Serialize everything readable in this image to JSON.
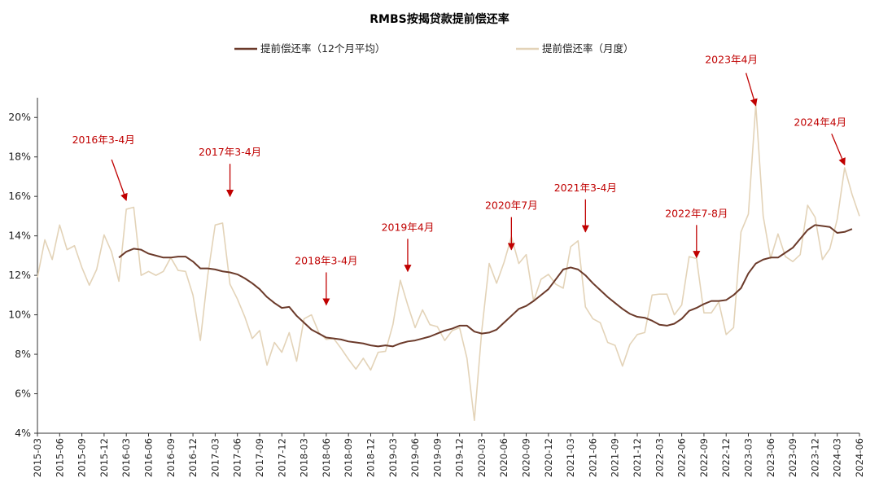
{
  "chart_data": {
    "type": "line",
    "title": "RMBS按揭贷款提前偿还率",
    "xlabel": "",
    "ylabel": "",
    "ylim": [
      4,
      21
    ],
    "yticks": [
      4,
      6,
      8,
      10,
      12,
      14,
      16,
      18,
      20
    ],
    "ytick_labels": [
      "4%",
      "6%",
      "8%",
      "10%",
      "12%",
      "14%",
      "16%",
      "18%",
      "20%"
    ],
    "grid": false,
    "legend_position": "top-center",
    "x_labels": [
      "2015-03",
      "2015-06",
      "2015-09",
      "2015-12",
      "2016-03",
      "2016-06",
      "2016-09",
      "2016-12",
      "2017-03",
      "2017-06",
      "2017-09",
      "2017-12",
      "2018-03",
      "2018-06",
      "2018-09",
      "2018-12",
      "2019-03",
      "2019-06",
      "2019-09",
      "2019-12",
      "2020-03",
      "2020-06",
      "2020-09",
      "2020-12",
      "2021-03",
      "2021-06",
      "2021-09",
      "2021-12",
      "2022-03",
      "2022-06",
      "2022-09",
      "2022-12",
      "2023-03",
      "2023-06",
      "2023-09",
      "2023-12",
      "2024-03",
      "2024-06"
    ],
    "x_start": "2015-03",
    "x_end": "2024-06",
    "series": [
      {
        "name": "提前偿还率（12个月平均）",
        "color": "#6b3a2a",
        "start": "2016-02",
        "values": [
          12.9,
          13.2,
          13.35,
          13.3,
          13.1,
          13.0,
          12.9,
          12.9,
          12.95,
          12.95,
          12.7,
          12.35,
          12.35,
          12.3,
          12.2,
          12.15,
          12.05,
          11.85,
          11.6,
          11.3,
          10.9,
          10.6,
          10.35,
          10.4,
          9.95,
          9.6,
          9.25,
          9.05,
          8.85,
          8.8,
          8.75,
          8.65,
          8.6,
          8.55,
          8.45,
          8.4,
          8.45,
          8.4,
          8.55,
          8.65,
          8.7,
          8.8,
          8.9,
          9.05,
          9.2,
          9.3,
          9.45,
          9.45,
          9.15,
          9.05,
          9.1,
          9.25,
          9.6,
          9.95,
          10.3,
          10.45,
          10.7,
          11.0,
          11.3,
          11.8,
          12.3,
          12.4,
          12.3,
          12.0,
          11.6,
          11.25,
          10.9,
          10.6,
          10.3,
          10.05,
          9.9,
          9.85,
          9.7,
          9.5,
          9.45,
          9.55,
          9.8,
          10.2,
          10.35,
          10.55,
          10.7,
          10.7,
          10.75,
          11.0,
          11.35,
          12.1,
          12.6,
          12.8,
          12.9,
          12.9,
          13.15,
          13.4,
          13.85,
          14.3,
          14.55,
          14.5,
          14.45,
          14.15,
          14.2,
          14.35
        ]
      },
      {
        "name": "提前偿还率（月度）",
        "color": "#e3d3b8",
        "start": "2015-03",
        "values": [
          11.9,
          13.8,
          12.8,
          14.55,
          13.3,
          13.5,
          12.4,
          11.5,
          12.3,
          14.05,
          13.2,
          11.7,
          15.35,
          15.45,
          12.0,
          12.2,
          12.0,
          12.2,
          12.9,
          12.25,
          12.2,
          11.0,
          8.7,
          12.0,
          14.55,
          14.65,
          11.55,
          10.8,
          9.9,
          8.8,
          9.2,
          7.45,
          8.6,
          8.1,
          9.1,
          7.65,
          9.8,
          10.0,
          9.1,
          8.75,
          8.8,
          8.3,
          7.75,
          7.25,
          7.8,
          7.2,
          8.1,
          8.15,
          9.5,
          11.75,
          10.5,
          9.35,
          10.25,
          9.5,
          9.4,
          8.7,
          9.2,
          9.35,
          7.8,
          4.65,
          9.2,
          12.6,
          11.6,
          12.65,
          13.95,
          12.6,
          13.05,
          10.7,
          11.8,
          12.05,
          11.55,
          11.35,
          13.45,
          13.75,
          10.4,
          9.8,
          9.6,
          8.6,
          8.45,
          7.4,
          8.5,
          9.0,
          9.1,
          11.0,
          11.05,
          11.05,
          10.0,
          10.5,
          12.95,
          12.85,
          10.1,
          10.1,
          10.65,
          9.0,
          9.35,
          14.2,
          15.1,
          20.65,
          15.0,
          12.85,
          14.1,
          12.95,
          12.7,
          13.05,
          15.55,
          14.95,
          12.8,
          13.35,
          14.85,
          17.45,
          16.1,
          15.0
        ]
      }
    ],
    "annotations": [
      {
        "text": "2016年3-4月",
        "x": "2016-03",
        "y": 15.8
      },
      {
        "text": "2017年3-4月",
        "x": "2017-05",
        "y": 16.0
      },
      {
        "text": "2018年3-4月",
        "x": "2018-06",
        "y": 10.5
      },
      {
        "text": "2019年4月",
        "x": "2019-05",
        "y": 12.2
      },
      {
        "text": "2020年7月",
        "x": "2020-07",
        "y": 13.3
      },
      {
        "text": "2021年3-4月",
        "x": "2021-05",
        "y": 14.2
      },
      {
        "text": "2022年7-8月",
        "x": "2022-08",
        "y": 12.9
      },
      {
        "text": "2023年4月",
        "x": "2023-04",
        "y": 20.6
      },
      {
        "text": "2024年4月",
        "x": "2024-04",
        "y": 17.6
      }
    ]
  }
}
